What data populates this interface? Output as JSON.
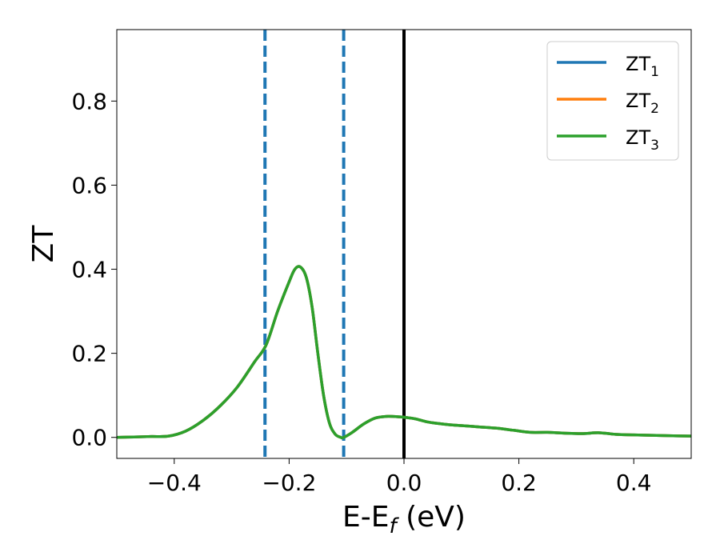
{
  "chart_data": {
    "type": "line",
    "title": "",
    "xlabel": {
      "main": "E-E",
      "sub": "f",
      "suffix": " (eV)"
    },
    "ylabel": "ZT",
    "xlim": [
      -0.5,
      0.5
    ],
    "ylim": [
      -0.05,
      0.97
    ],
    "xticks": [
      -0.4,
      -0.2,
      0.0,
      0.2,
      0.4
    ],
    "xtick_labels": [
      "−0.4",
      "−0.2",
      "0.0",
      "0.2",
      "0.4"
    ],
    "yticks": [
      0.0,
      0.2,
      0.4,
      0.6,
      0.8
    ],
    "ytick_labels": [
      "0.0",
      "0.2",
      "0.4",
      "0.6",
      "0.8"
    ],
    "grid": false,
    "legend_placement": "top-right",
    "x": [
      -0.5,
      -0.47,
      -0.44,
      -0.41,
      -0.38,
      -0.35,
      -0.32,
      -0.29,
      -0.26,
      -0.24,
      -0.22,
      -0.2,
      -0.19,
      -0.18,
      -0.17,
      -0.16,
      -0.15,
      -0.14,
      -0.13,
      -0.12,
      -0.11,
      -0.105,
      -0.09,
      -0.07,
      -0.05,
      -0.03,
      -0.01,
      0.0,
      0.02,
      0.04,
      0.06,
      0.08,
      0.1,
      0.13,
      0.16,
      0.19,
      0.22,
      0.25,
      0.28,
      0.31,
      0.34,
      0.37,
      0.4,
      0.43,
      0.46,
      0.5
    ],
    "series": [
      {
        "name": "ZT",
        "sub": "1",
        "color": "#1f77b4",
        "values": [
          0.0,
          0.001,
          0.002,
          0.003,
          0.015,
          0.04,
          0.075,
          0.12,
          0.18,
          0.22,
          0.3,
          0.37,
          0.4,
          0.405,
          0.38,
          0.31,
          0.2,
          0.1,
          0.035,
          0.008,
          0.0,
          0.0,
          0.012,
          0.032,
          0.046,
          0.05,
          0.049,
          0.048,
          0.044,
          0.037,
          0.033,
          0.03,
          0.028,
          0.025,
          0.022,
          0.017,
          0.012,
          0.012,
          0.01,
          0.009,
          0.011,
          0.007,
          0.006,
          0.005,
          0.004,
          0.003
        ]
      },
      {
        "name": "ZT",
        "sub": "2",
        "color": "#ff7f0e",
        "values": [
          0.0,
          0.001,
          0.002,
          0.003,
          0.015,
          0.04,
          0.075,
          0.12,
          0.18,
          0.22,
          0.3,
          0.37,
          0.4,
          0.405,
          0.38,
          0.31,
          0.2,
          0.1,
          0.035,
          0.008,
          0.0,
          0.0,
          0.012,
          0.032,
          0.046,
          0.05,
          0.049,
          0.048,
          0.044,
          0.037,
          0.033,
          0.03,
          0.028,
          0.025,
          0.022,
          0.017,
          0.012,
          0.012,
          0.01,
          0.009,
          0.011,
          0.007,
          0.006,
          0.005,
          0.004,
          0.003
        ]
      },
      {
        "name": "ZT",
        "sub": "3",
        "color": "#2ca02c",
        "values": [
          0.0,
          0.001,
          0.002,
          0.003,
          0.015,
          0.04,
          0.075,
          0.12,
          0.18,
          0.22,
          0.3,
          0.37,
          0.4,
          0.405,
          0.38,
          0.31,
          0.2,
          0.1,
          0.035,
          0.008,
          0.0,
          0.0,
          0.012,
          0.032,
          0.046,
          0.05,
          0.049,
          0.048,
          0.044,
          0.037,
          0.033,
          0.03,
          0.028,
          0.025,
          0.022,
          0.017,
          0.012,
          0.012,
          0.01,
          0.009,
          0.011,
          0.007,
          0.006,
          0.005,
          0.004,
          0.003
        ]
      }
    ],
    "vlines": [
      {
        "x": -0.242,
        "style": "dashed",
        "color": "#1f77b4"
      },
      {
        "x": -0.105,
        "style": "dashed",
        "color": "#1f77b4"
      },
      {
        "x": 0.0,
        "style": "solid",
        "color": "#000000"
      }
    ]
  }
}
